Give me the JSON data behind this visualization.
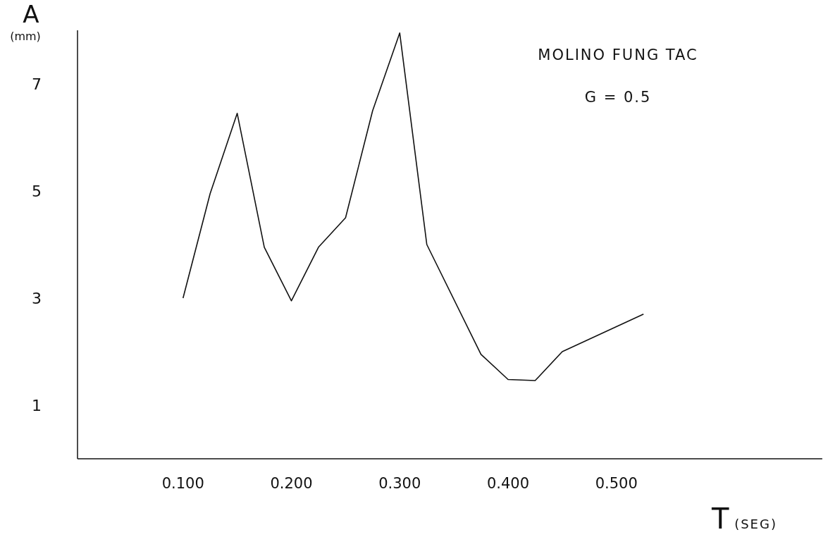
{
  "chart_data": {
    "type": "line",
    "xlabel": "T (SEG)",
    "ylabel": "A (mm)",
    "annotations": [
      "MOLINO FUNG TAC",
      "G = 0.5"
    ],
    "x": [
      0.1,
      0.125,
      0.15,
      0.175,
      0.2,
      0.225,
      0.25,
      0.275,
      0.3,
      0.325,
      0.375,
      0.4,
      0.425,
      0.45,
      0.525
    ],
    "series": [
      {
        "color": "#111111",
        "values": [
          3.0,
          4.95,
          6.45,
          3.95,
          2.95,
          3.95,
          4.5,
          6.5,
          7.95,
          4.0,
          1.95,
          1.48,
          1.46,
          2.0,
          2.7
        ]
      }
    ],
    "xlim": [
      0,
      0.69
    ],
    "ylim": [
      0,
      8
    ],
    "xticks": [
      {
        "value": 0.1,
        "label": "0.100"
      },
      {
        "value": 0.2,
        "label": "0.200"
      },
      {
        "value": 0.3,
        "label": "0.300"
      },
      {
        "value": 0.4,
        "label": "0.400"
      },
      {
        "value": 0.5,
        "label": "0.500"
      }
    ],
    "yticks": [
      1,
      3,
      5,
      7
    ],
    "grid": false,
    "marker": "none",
    "line_style": "solid"
  }
}
